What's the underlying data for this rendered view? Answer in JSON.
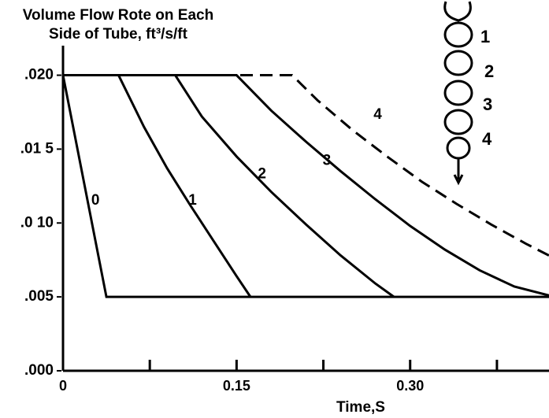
{
  "chart_data": {
    "type": "line",
    "title": [
      "Volume Flow Rote on Each",
      "Side of Tube, ft³/s/ft"
    ],
    "x_label": "Time,S",
    "xlim": [
      0,
      0.42
    ],
    "ylim": [
      0,
      0.022
    ],
    "xticks": [
      {
        "value": 0,
        "label": "0"
      },
      {
        "value": 0.15,
        "label": "0.15"
      },
      {
        "value": 0.3,
        "label": "0.30"
      }
    ],
    "xminor_ticks": [
      0.075,
      0.225,
      0.375
    ],
    "yticks": [
      {
        "value": 0,
        "label": ".000"
      },
      {
        "value": 0.005,
        "label": ".005"
      },
      {
        "value": 0.01,
        "label": ".0 10"
      },
      {
        "value": 0.015,
        "label": ".01 5"
      },
      {
        "value": 0.02,
        "label": ".020"
      }
    ],
    "color": "#000000",
    "series": [
      {
        "name": "0",
        "dashed": false,
        "x": [
          0,
          0.0375,
          0.42
        ],
        "values": [
          0.02,
          0.005,
          0.005
        ]
      },
      {
        "name": "1",
        "dashed": false,
        "x": [
          0,
          0.048,
          0.07,
          0.09,
          0.11,
          0.13,
          0.15,
          0.162
        ],
        "values": [
          0.02,
          0.02,
          0.0165,
          0.0137,
          0.0112,
          0.0088,
          0.0064,
          0.005
        ]
      },
      {
        "name": "2",
        "dashed": false,
        "x": [
          0,
          0.097,
          0.12,
          0.15,
          0.18,
          0.21,
          0.24,
          0.27,
          0.286
        ],
        "values": [
          0.02,
          0.02,
          0.0172,
          0.0145,
          0.0121,
          0.0099,
          0.0078,
          0.0059,
          0.005
        ]
      },
      {
        "name": "3",
        "dashed": false,
        "x": [
          0,
          0.15,
          0.18,
          0.21,
          0.24,
          0.27,
          0.3,
          0.33,
          0.36,
          0.39,
          0.42
        ],
        "values": [
          0.02,
          0.02,
          0.0176,
          0.0155,
          0.0135,
          0.0116,
          0.0098,
          0.0082,
          0.0068,
          0.0057,
          0.0051
        ]
      },
      {
        "name": "4",
        "dashed": true,
        "x": [
          0,
          0.198,
          0.22,
          0.25,
          0.28,
          0.31,
          0.34,
          0.37,
          0.4,
          0.42
        ],
        "values": [
          0.02,
          0.02,
          0.0183,
          0.0163,
          0.0145,
          0.0128,
          0.0113,
          0.0099,
          0.0086,
          0.0078
        ]
      }
    ],
    "diagram_labels": [
      "1",
      "2",
      "3",
      "4"
    ]
  }
}
